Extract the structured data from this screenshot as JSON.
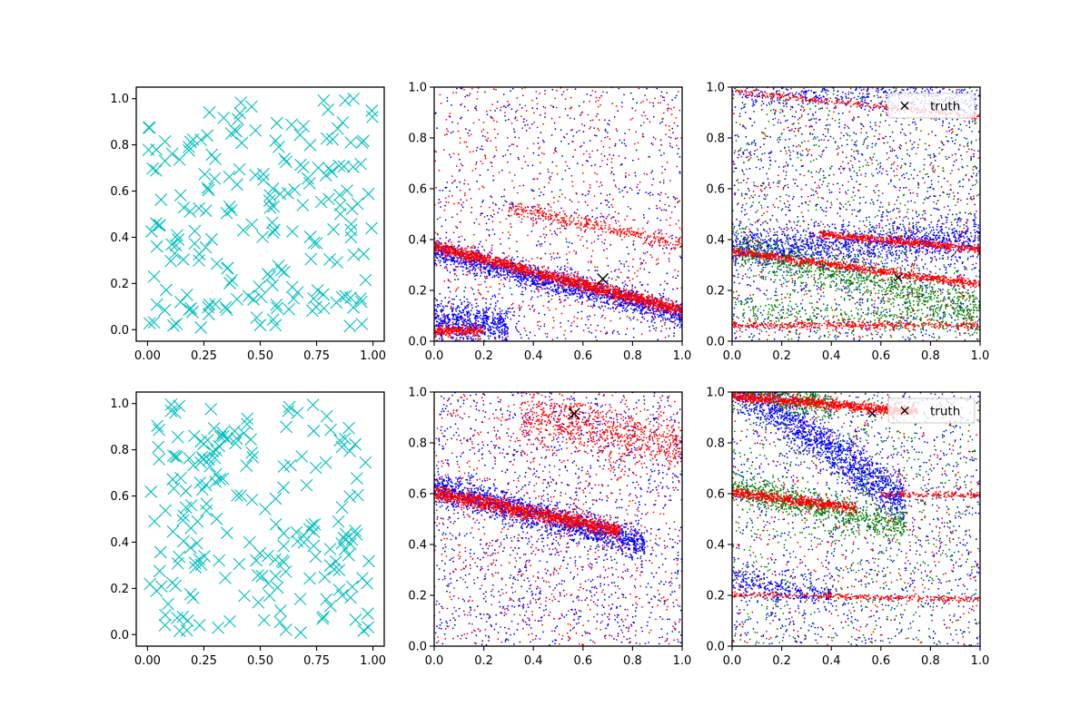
{
  "figure": {
    "layout": "2x3 grid of subplots"
  },
  "chart_data": [
    {
      "type": "scatter",
      "row": 0,
      "col": 0,
      "xlim": [
        -0.05,
        1.05
      ],
      "ylim": [
        -0.05,
        1.05
      ],
      "xticks": [
        "0.00",
        "0.25",
        "0.50",
        "0.75",
        "1.00"
      ],
      "yticks": [
        "0.0",
        "0.2",
        "0.4",
        "0.6",
        "0.8",
        "1.0"
      ],
      "grid": false,
      "legend": null,
      "series": [
        {
          "marker": "x",
          "color": "#00bfbf",
          "count": 200,
          "distribution": "uniform random points over [0,1] x [0,1]"
        }
      ]
    },
    {
      "type": "scatter",
      "row": 0,
      "col": 1,
      "xlim": [
        0,
        1
      ],
      "ylim": [
        0,
        1
      ],
      "xticks": [
        "0.0",
        "0.2",
        "0.4",
        "0.6",
        "0.8",
        "1.0"
      ],
      "yticks": [
        "0.0",
        "0.2",
        "0.4",
        "0.6",
        "0.8",
        "1.0"
      ],
      "grid": false,
      "legend": null,
      "series": [
        {
          "marker": "dot",
          "color": "#0000ff",
          "count": 3000,
          "bands": [
            {
              "y0": 0.35,
              "y1": 0.1,
              "spread": 0.025,
              "weight": 0.55
            },
            {
              "y0": 0.08,
              "y1": 0.0,
              "spread": 0.04,
              "x_range": [
                0,
                0.3
              ],
              "weight": 0.2
            }
          ],
          "background_weight": 0.25
        },
        {
          "marker": "dot",
          "color": "#ff0000",
          "count": 3000,
          "bands": [
            {
              "y0": 0.37,
              "y1": 0.12,
              "spread": 0.012,
              "weight": 0.55
            },
            {
              "y0": 0.58,
              "y1": 0.38,
              "spread": 0.015,
              "x_range": [
                0.3,
                1
              ],
              "weight": 0.12
            },
            {
              "y0": 0.04,
              "y1": 0.02,
              "spread": 0.01,
              "x_range": [
                0,
                0.2
              ],
              "weight": 0.08
            }
          ],
          "background_weight": 0.25
        }
      ],
      "truth": {
        "x": 0.68,
        "y": 0.245,
        "marker": "X",
        "color": "#000000"
      }
    },
    {
      "type": "scatter",
      "row": 0,
      "col": 2,
      "xlim": [
        0,
        1
      ],
      "ylim": [
        0,
        1
      ],
      "xticks": [
        "0.0",
        "0.2",
        "0.4",
        "0.6",
        "0.8",
        "1.0"
      ],
      "yticks": [
        "0.0",
        "0.2",
        "0.4",
        "0.6",
        "0.8",
        "1.0"
      ],
      "grid": false,
      "legend": {
        "position": "upper right",
        "entries": [
          "truth"
        ]
      },
      "series": [
        {
          "marker": "dot",
          "color": "#0000ff",
          "count": 3000,
          "bands": [
            {
              "y0": 0.36,
              "y1": 0.4,
              "spread": 0.04,
              "weight": 0.45
            },
            {
              "y0": 1.0,
              "y1": 0.95,
              "spread": 0.04,
              "weight": 0.15
            }
          ],
          "background_weight": 0.4
        },
        {
          "marker": "dot",
          "color": "#008000",
          "count": 2000,
          "bands": [
            {
              "y0": 0.36,
              "y1": 0.12,
              "spread": 0.04,
              "weight": 0.5
            },
            {
              "y0": 0.12,
              "y1": 0.06,
              "spread": 0.03,
              "weight": 0.15
            }
          ],
          "background_weight": 0.35
        },
        {
          "marker": "dot",
          "color": "#ff0000",
          "count": 2500,
          "bands": [
            {
              "y0": 0.35,
              "y1": 0.22,
              "spread": 0.008,
              "weight": 0.3
            },
            {
              "y0": 0.45,
              "y1": 0.36,
              "spread": 0.008,
              "x_range": [
                0.35,
                1
              ],
              "weight": 0.22
            },
            {
              "y0": 0.06,
              "y1": 0.06,
              "spread": 0.008,
              "weight": 0.15
            },
            {
              "y0": 0.98,
              "y1": 0.88,
              "spread": 0.006,
              "weight": 0.1
            }
          ],
          "background_weight": 0.23
        }
      ],
      "truth": {
        "x": 0.67,
        "y": 0.25,
        "marker": "x",
        "color": "#000000"
      }
    },
    {
      "type": "scatter",
      "row": 1,
      "col": 0,
      "xlim": [
        -0.05,
        1.05
      ],
      "ylim": [
        -0.05,
        1.05
      ],
      "xticks": [
        "0.00",
        "0.25",
        "0.50",
        "0.75",
        "1.00"
      ],
      "yticks": [
        "0.0",
        "0.2",
        "0.4",
        "0.6",
        "0.8",
        "1.0"
      ],
      "grid": false,
      "legend": null,
      "series": [
        {
          "marker": "x",
          "color": "#00bfbf",
          "count": 200,
          "distribution": "uniform random points over [0,1] x [0,1]"
        }
      ]
    },
    {
      "type": "scatter",
      "row": 1,
      "col": 1,
      "xlim": [
        0,
        1
      ],
      "ylim": [
        0,
        1
      ],
      "xticks": [
        "0.0",
        "0.2",
        "0.4",
        "0.6",
        "0.8",
        "1.0"
      ],
      "yticks": [
        "0.0",
        "0.2",
        "0.4",
        "0.6",
        "0.8",
        "1.0"
      ],
      "grid": false,
      "legend": null,
      "series": [
        {
          "marker": "dot",
          "color": "#0000ff",
          "count": 3000,
          "bands": [
            {
              "y0": 0.62,
              "y1": 0.36,
              "spread": 0.03,
              "x_range": [
                0,
                0.85
              ],
              "weight": 0.55
            }
          ],
          "background_weight": 0.45
        },
        {
          "marker": "dot",
          "color": "#ff0000",
          "count": 3000,
          "bands": [
            {
              "y0": 0.6,
              "y1": 0.4,
              "spread": 0.015,
              "x_range": [
                0,
                0.75
              ],
              "weight": 0.45
            },
            {
              "y0": 0.98,
              "y1": 0.78,
              "spread": 0.05,
              "x_range": [
                0.35,
                1
              ],
              "weight": 0.25
            }
          ],
          "background_weight": 0.3
        }
      ],
      "truth": {
        "x": 0.565,
        "y": 0.915,
        "marker": "X",
        "color": "#000000"
      }
    },
    {
      "type": "scatter",
      "row": 1,
      "col": 2,
      "xlim": [
        0,
        1
      ],
      "ylim": [
        0,
        1
      ],
      "xticks": [
        "0.0",
        "0.2",
        "0.4",
        "0.6",
        "0.8",
        "1.0"
      ],
      "yticks": [
        "0.0",
        "0.2",
        "0.4",
        "0.6",
        "0.8",
        "1.0"
      ],
      "grid": false,
      "legend": {
        "position": "upper right",
        "entries": [
          "truth"
        ]
      },
      "series": [
        {
          "marker": "dot",
          "color": "#0000ff",
          "count": 3000,
          "bands": [
            {
              "y0": 1.05,
              "y1": 0.35,
              "spread": 0.05,
              "x_range": [
                0,
                0.7
              ],
              "weight": 0.55
            },
            {
              "y0": 0.25,
              "y1": 0.12,
              "spread": 0.03,
              "x_range": [
                0,
                0.4
              ],
              "weight": 0.1
            }
          ],
          "background_weight": 0.35
        },
        {
          "marker": "dot",
          "color": "#008000",
          "count": 2000,
          "bands": [
            {
              "y0": 1.02,
              "y1": 0.82,
              "spread": 0.03,
              "x_range": [
                0,
                0.4
              ],
              "weight": 0.2
            },
            {
              "y0": 0.62,
              "y1": 0.4,
              "spread": 0.03,
              "x_range": [
                0,
                0.7
              ],
              "weight": 0.4
            }
          ],
          "background_weight": 0.4
        },
        {
          "marker": "dot",
          "color": "#ff0000",
          "count": 2500,
          "bands": [
            {
              "y0": 0.98,
              "y1": 0.9,
              "spread": 0.01,
              "x_range": [
                0,
                0.75
              ],
              "weight": 0.4
            },
            {
              "y0": 0.6,
              "y1": 0.48,
              "spread": 0.01,
              "x_range": [
                0,
                0.5
              ],
              "weight": 0.25
            },
            {
              "y0": 0.2,
              "y1": 0.18,
              "spread": 0.006,
              "weight": 0.12
            },
            {
              "y0": 0.6,
              "y1": 0.59,
              "spread": 0.006,
              "x_range": [
                0.6,
                1
              ],
              "weight": 0.06
            }
          ],
          "background_weight": 0.17
        }
      ],
      "truth": {
        "x": 0.565,
        "y": 0.915,
        "marker": "x",
        "color": "#000000"
      }
    }
  ],
  "legend": {
    "label": "truth"
  }
}
